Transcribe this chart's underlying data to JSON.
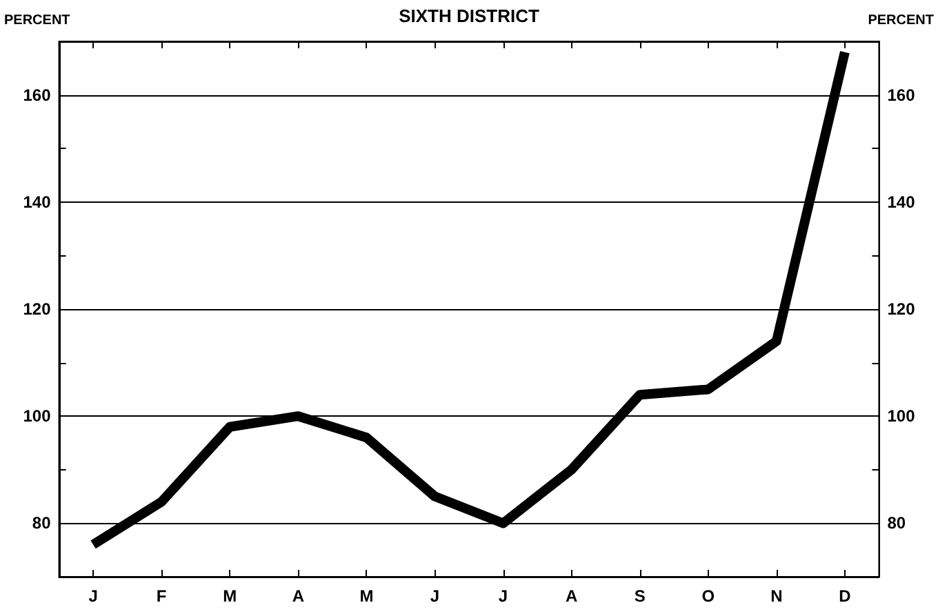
{
  "chart_data": {
    "type": "line",
    "title": "SIXTH DISTRICT",
    "ylabel": "PERCENT",
    "y2label": "PERCENT",
    "categories": [
      "J",
      "F",
      "M",
      "A",
      "M",
      "J",
      "J",
      "A",
      "S",
      "O",
      "N",
      "D"
    ],
    "series": [
      {
        "color": "#000000",
        "values": [
          76,
          84,
          98,
          100,
          96,
          85,
          80,
          90,
          104,
          105,
          114,
          168
        ]
      }
    ],
    "ylim": [
      70,
      170
    ],
    "yticks": [
      {
        "value": 70,
        "label": null
      },
      80,
      {
        "value": 90,
        "label": null
      },
      100,
      {
        "value": 110,
        "label": null
      },
      120,
      {
        "value": 130,
        "label": null
      },
      140,
      {
        "value": 150,
        "label": null
      },
      160
    ],
    "y2lim": [
      70,
      170
    ],
    "y2ticks": [
      {
        "value": 70,
        "label": null
      },
      80,
      {
        "value": 90,
        "label": null
      },
      100,
      {
        "value": 110,
        "label": null
      },
      120,
      {
        "value": 130,
        "label": null
      },
      140,
      {
        "value": 150,
        "label": null
      },
      160
    ],
    "grid": "y",
    "marker": "none",
    "line_style": "solid"
  }
}
